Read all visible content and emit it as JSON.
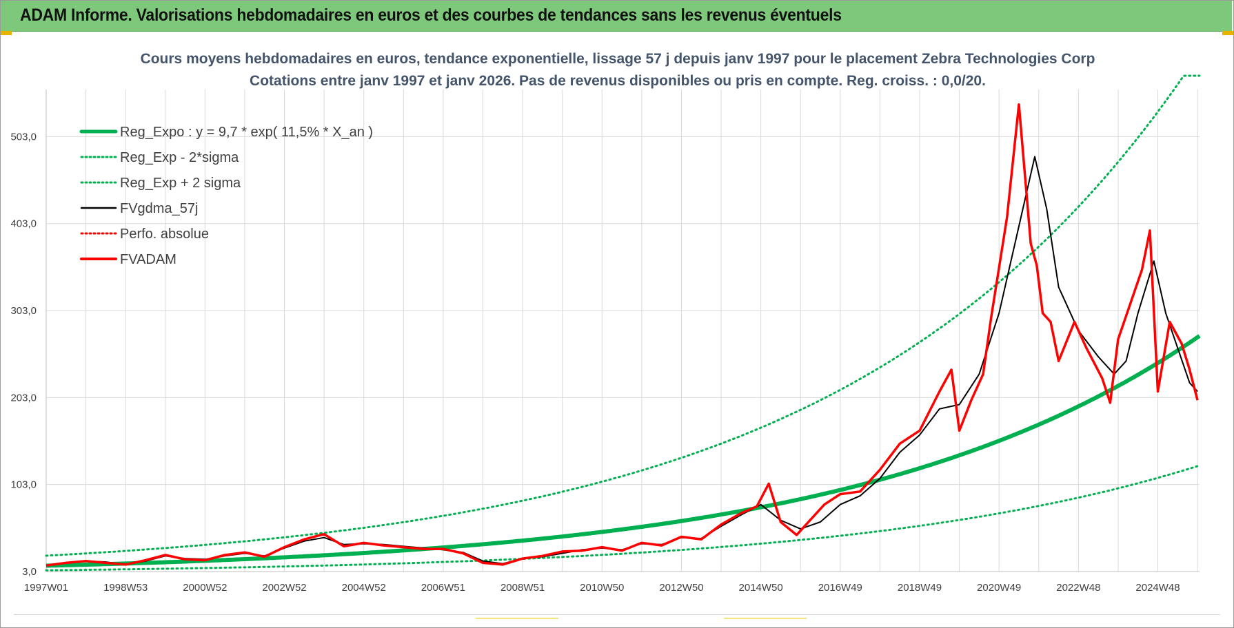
{
  "header": {
    "title": "ADAM Informe. Valorisations hebdomadaires en euros et des courbes de tendances sans les revenus éventuels"
  },
  "colors": {
    "header_bg": "#7dc87a",
    "reg_expo": "#00b050",
    "fv_gdma": "#000000",
    "fvadam": "#ff0000",
    "grid": "#d9d9d9"
  },
  "chart_data": {
    "type": "line",
    "title": "Cours moyens hebdomadaires en euros, tendance exponentielle, lissage 57 j depuis janv 1997  pour le placement Zebra Technologies Corp",
    "subtitle": "Cotations entre janv 1997 et janv 2026. Pas de revenus disponibles ou pris en compte. Reg. croiss. : 0,0/20.",
    "xlabel": "",
    "ylabel": "",
    "x_tick_labels": [
      "1997W01",
      "1998W53",
      "2000W52",
      "2002W52",
      "2004W52",
      "2006W51",
      "2008W51",
      "2010W50",
      "2012W50",
      "2014W50",
      "2016W49",
      "2018W49",
      "2020W49",
      "2022W48",
      "2024W48"
    ],
    "y_tick_labels": [
      "3,0",
      "103,0",
      "203,0",
      "303,0",
      "403,0",
      "503,0"
    ],
    "ylim": [
      3,
      573
    ],
    "xlim": [
      1997.0,
      2026.05
    ],
    "grid": true,
    "legend_position": "top-left",
    "regression": {
      "a": 9.7,
      "growth": 0.115,
      "sigma_low_factor": 0.456,
      "sigma_high_factor": 2.19,
      "clip_top": 573
    },
    "series": [
      {
        "name": "Reg_Expo : y = 9,7 * exp( 11,5% *  X_an )",
        "style": "solid-thick",
        "color": "#00b050",
        "role": "reg"
      },
      {
        "name": "Reg_Exp - 2*sigma",
        "style": "dotted",
        "color": "#00b050",
        "role": "low"
      },
      {
        "name": "Reg_Exp + 2 sigma",
        "style": "dotted",
        "color": "#00b050",
        "role": "high"
      },
      {
        "name": "FVgdma_57j",
        "style": "solid-thin",
        "color": "#000000",
        "role": "smooth",
        "x": [
          1997.0,
          1997.5,
          1998.0,
          1998.5,
          1999.0,
          1999.5,
          2000.0,
          2000.5,
          2001.0,
          2001.5,
          2002.0,
          2002.5,
          2003.0,
          2003.5,
          2004.0,
          2004.5,
          2005.0,
          2005.5,
          2006.0,
          2006.5,
          2007.0,
          2007.5,
          2008.0,
          2008.5,
          2009.0,
          2009.5,
          2010.0,
          2010.5,
          2011.0,
          2011.5,
          2012.0,
          2012.5,
          2013.0,
          2013.5,
          2014.0,
          2014.5,
          2015.0,
          2015.5,
          2016.0,
          2016.5,
          2017.0,
          2017.5,
          2018.0,
          2018.5,
          2019.0,
          2019.5,
          2020.0,
          2020.5,
          2021.0,
          2021.5,
          2021.9,
          2022.2,
          2022.5,
          2023.0,
          2023.5,
          2023.9,
          2024.2,
          2024.5,
          2024.9,
          2025.2,
          2025.5,
          2025.8,
          2026.0
        ],
        "values": [
          10,
          13,
          15,
          14,
          11,
          15,
          21,
          18,
          17,
          21,
          24,
          21,
          30,
          38,
          42,
          34,
          35,
          34,
          32,
          30,
          28,
          25,
          15,
          12,
          18,
          20,
          24,
          28,
          30,
          28,
          35,
          34,
          42,
          41,
          55,
          68,
          80,
          62,
          52,
          60,
          80,
          90,
          110,
          140,
          160,
          190,
          195,
          230,
          300,
          400,
          480,
          420,
          330,
          280,
          250,
          230,
          245,
          300,
          360,
          300,
          260,
          220,
          210
        ]
      },
      {
        "name": "Perfo. absolue",
        "style": "dotted",
        "color": "#ff0000",
        "role": "perfo"
      },
      {
        "name": "FVADAM",
        "style": "solid-medium",
        "color": "#ff0000",
        "role": "price",
        "x": [
          1997.0,
          1997.5,
          1998.0,
          1998.5,
          1999.0,
          1999.5,
          2000.0,
          2000.5,
          2001.0,
          2001.5,
          2002.0,
          2002.5,
          2003.0,
          2003.5,
          2004.0,
          2004.5,
          2005.0,
          2005.5,
          2006.0,
          2006.5,
          2007.0,
          2007.5,
          2008.0,
          2008.5,
          2009.0,
          2009.5,
          2010.0,
          2010.5,
          2011.0,
          2011.5,
          2012.0,
          2012.5,
          2013.0,
          2013.5,
          2014.0,
          2014.5,
          2014.9,
          2015.2,
          2015.5,
          2015.9,
          2016.3,
          2016.6,
          2017.0,
          2017.5,
          2018.0,
          2018.5,
          2019.0,
          2019.5,
          2019.8,
          2020.0,
          2020.3,
          2020.6,
          2020.8,
          2021.2,
          2021.5,
          2021.8,
          2021.95,
          2022.1,
          2022.3,
          2022.5,
          2022.9,
          2023.2,
          2023.6,
          2023.8,
          2024.0,
          2024.3,
          2024.6,
          2024.8,
          2025.0,
          2025.3,
          2025.6,
          2025.8,
          2026.0
        ],
        "values": [
          10,
          13,
          15,
          13,
          11,
          16,
          22,
          17,
          16,
          22,
          25,
          20,
          31,
          40,
          46,
          32,
          36,
          33,
          31,
          29,
          29,
          24,
          13,
          11,
          18,
          21,
          26,
          27,
          31,
          27,
          36,
          33,
          43,
          40,
          57,
          70,
          78,
          104,
          60,
          45,
          65,
          80,
          92,
          95,
          120,
          150,
          165,
          210,
          235,
          165,
          200,
          230,
          295,
          410,
          540,
          380,
          355,
          300,
          290,
          245,
          290,
          260,
          225,
          197,
          270,
          310,
          350,
          395,
          210,
          290,
          265,
          235,
          200
        ]
      }
    ]
  }
}
